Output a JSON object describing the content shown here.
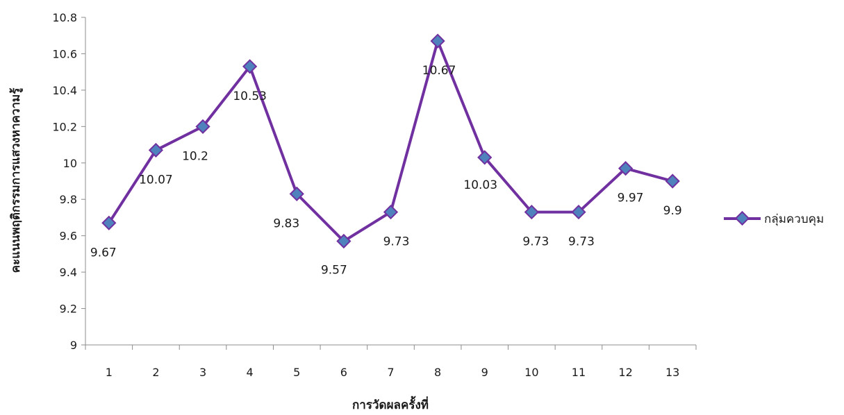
{
  "chart_data": {
    "type": "line",
    "title": "",
    "xlabel": "การวัดผลครั้งที่",
    "ylabel": "คะแนนพฤติกรรมการแสวงหาความรู้",
    "categories": [
      "1",
      "2",
      "3",
      "4",
      "5",
      "6",
      "7",
      "8",
      "9",
      "10",
      "11",
      "12",
      "13"
    ],
    "ylim": [
      9,
      10.8
    ],
    "yticks": [
      "9",
      "9.2",
      "9.4",
      "9.6",
      "9.8",
      "10",
      "10.2",
      "10.4",
      "10.6",
      "10.8"
    ],
    "grid": false,
    "legend_position": "right",
    "series": [
      {
        "name": "กลุ่มควบคุม",
        "values": [
          9.67,
          10.07,
          10.2,
          10.53,
          9.83,
          9.57,
          9.73,
          10.67,
          10.03,
          9.73,
          9.73,
          9.97,
          9.9
        ],
        "labels": [
          "9.67",
          "10.07",
          "10.2",
          "10.53",
          "9.83",
          "9.57",
          "9.73",
          "10.67",
          "10.03",
          "9.73",
          "9.73",
          "9.97",
          "9.9"
        ],
        "line_color": "#7030a0",
        "marker_color": "#4f81bd"
      }
    ]
  }
}
